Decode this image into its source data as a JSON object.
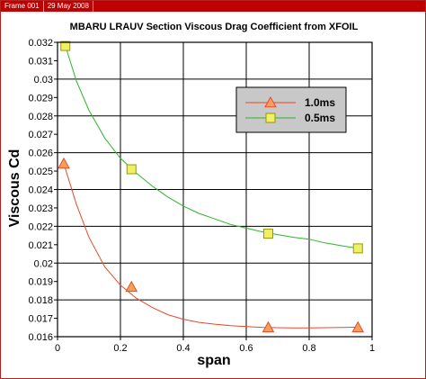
{
  "frame": {
    "label": "Frame 001",
    "date": "29 May 2008"
  },
  "colors": {
    "frame_bar": "#c00000",
    "series_1": "#e64a2a",
    "series_1_marker": "#f5a05a",
    "series_2": "#2db52d",
    "series_2_marker": "#f0f066",
    "legend_bg": "#c8c8c8"
  },
  "chart_data": {
    "type": "line",
    "title": "MBARU LRAUV Section Viscous Drag Coefficient from XFOIL",
    "xlabel": "span",
    "ylabel": "Viscous Cd",
    "xlim": [
      0,
      1
    ],
    "ylim": [
      0.016,
      0.032
    ],
    "xticks": [
      "0",
      "0.2",
      "0.4",
      "0.6",
      "0.8",
      "1"
    ],
    "yticks": [
      "0.016",
      "0.017",
      "0.018",
      "0.019",
      "0.02",
      "0.021",
      "0.022",
      "0.023",
      "0.024",
      "0.025",
      "0.026",
      "0.027",
      "0.028",
      "0.029",
      "0.03",
      "0.031",
      "0.032"
    ],
    "grid": true,
    "legend_position": "top-right",
    "series": [
      {
        "name": "1.0ms",
        "marker": "triangle",
        "points": [
          [
            0.02,
            0.0254
          ],
          [
            0.235,
            0.0187
          ],
          [
            0.67,
            0.0165
          ],
          [
            0.955,
            0.0165
          ]
        ],
        "curve": [
          [
            0.02,
            0.0254
          ],
          [
            0.06,
            0.0232
          ],
          [
            0.1,
            0.0214
          ],
          [
            0.15,
            0.0198
          ],
          [
            0.2,
            0.0188
          ],
          [
            0.25,
            0.0181
          ],
          [
            0.3,
            0.0176
          ],
          [
            0.35,
            0.0172
          ],
          [
            0.4,
            0.01695
          ],
          [
            0.45,
            0.01678
          ],
          [
            0.5,
            0.01668
          ],
          [
            0.55,
            0.0166
          ],
          [
            0.6,
            0.01655
          ],
          [
            0.65,
            0.01651
          ],
          [
            0.7,
            0.01649
          ],
          [
            0.75,
            0.01648
          ],
          [
            0.8,
            0.01648
          ],
          [
            0.85,
            0.01649
          ],
          [
            0.9,
            0.0165
          ],
          [
            0.955,
            0.01652
          ]
        ]
      },
      {
        "name": "0.5ms",
        "marker": "square",
        "points": [
          [
            0.025,
            0.0318
          ],
          [
            0.235,
            0.0251
          ],
          [
            0.67,
            0.0216
          ],
          [
            0.955,
            0.0208
          ]
        ],
        "curve": [
          [
            0.025,
            0.0318
          ],
          [
            0.06,
            0.0299
          ],
          [
            0.1,
            0.0283
          ],
          [
            0.15,
            0.0268
          ],
          [
            0.2,
            0.0257
          ],
          [
            0.25,
            0.0249
          ],
          [
            0.3,
            0.0242
          ],
          [
            0.35,
            0.0236
          ],
          [
            0.4,
            0.0231
          ],
          [
            0.45,
            0.0227
          ],
          [
            0.5,
            0.0224
          ],
          [
            0.55,
            0.0221
          ],
          [
            0.6,
            0.0219
          ],
          [
            0.65,
            0.0217
          ],
          [
            0.7,
            0.02155
          ],
          [
            0.75,
            0.0214
          ],
          [
            0.8,
            0.0213
          ],
          [
            0.85,
            0.0211
          ],
          [
            0.9,
            0.02095
          ],
          [
            0.955,
            0.0208
          ]
        ]
      }
    ]
  }
}
